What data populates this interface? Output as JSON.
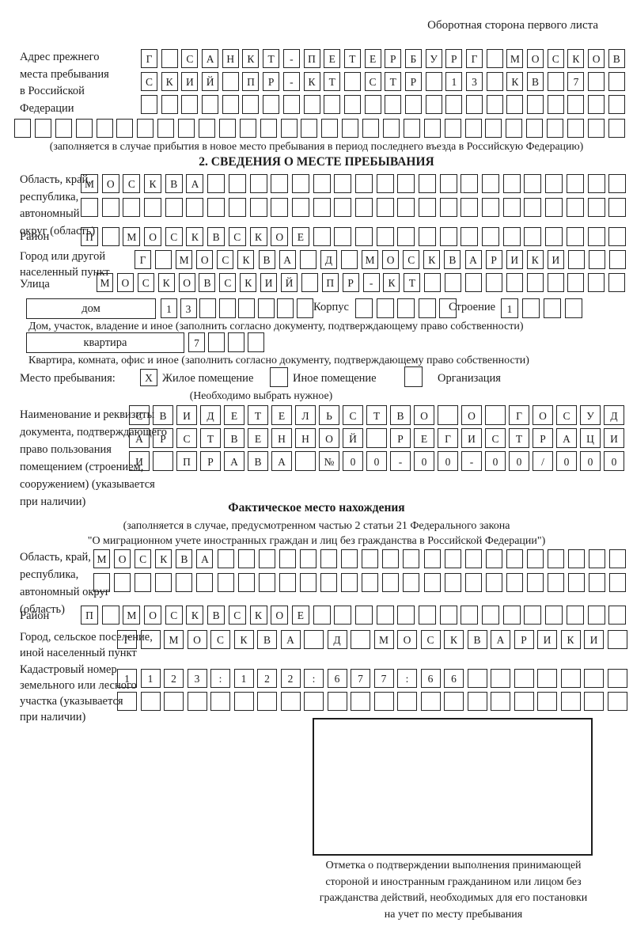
{
  "header": {
    "note": "Оборотная сторона первого листа"
  },
  "prev_address": {
    "label": "Адрес прежнего\nместа пребывания\nв Российской\nФедерации",
    "row1": "Г САНКТ-ПЕТЕРБУРГ МОСКОВ",
    "row2": "СКИЙ ПР-КТ СТР 13 КВ 7  ",
    "row3": "                        ",
    "row4": "                              ",
    "caption": "(заполняется в случае прибытия в новое место пребывания в период последнего въезда в Российскую Федерацию)"
  },
  "section2": {
    "title": "2. СВЕДЕНИЯ О МЕСТЕ ПРЕБЫВАНИЯ",
    "region": {
      "label": "Область, край,\nреспублика,\nавтономный\nокруг (область)",
      "row1": "МОСКВА                    ",
      "row2": "                          "
    },
    "district": {
      "label": "Район",
      "row": "П МОСКВСКОЕ               "
    },
    "city": {
      "label": "Город или другой\nнаселенный пункт",
      "row": "Г МОСКВА Д МОСКВАРИКИ   "
    },
    "street": {
      "label": "Улица",
      "row": "МОСКОВСКИЙ ПР-КТ          "
    },
    "house": {
      "box_label": "дом",
      "cells": "13      ",
      "korpus_label": "Корпус",
      "korpus_cells": "     ",
      "stroenie_label": "Строение",
      "stroenie_cells": "1   ",
      "caption": "Дом, участок, владение и иное (заполнить согласно документу, подтверждающему право собственности)"
    },
    "apartment": {
      "box_label": "квартира",
      "cells": "7   ",
      "caption": "Квартира, комната, офис и иное (заполнить согласно документу, подтверждающему право собственности)"
    },
    "residence": {
      "label": "Место пребывания:",
      "zhiloe_mark": "X",
      "zhiloe_label": "Жилое помещение",
      "inoe_mark": " ",
      "inoe_label": "Иное помещение",
      "org_mark": " ",
      "org_label": "Организация",
      "hint": "(Необходимо выбрать нужное)"
    },
    "document": {
      "label": "Наименование и реквизиты\nдокумента, подтверждающего\nправо пользования\nпомещением (строением,\nсооружением) (указывается\nпри наличии)",
      "row1": "СВИДЕТЕЛЬСТВО О ГОСУД",
      "row2": "АРСТВЕННОЙ РЕГИСТРАЦИ",
      "row3": "И ПРАВА №00-00-00/000"
    }
  },
  "actual_location": {
    "title": "Фактическое место нахождения",
    "caption": "(заполняется в случае, предусмотренном частью 2 статьи 21 Федерального закона\n\"О миграционном учете иностранных граждан и лиц без гражданства в Российской Федерации\")",
    "region": {
      "label": "Область, край,\nреспублика,\nавтономный округ\n(область)",
      "row1": "МОСКВА                    ",
      "row2": "                          "
    },
    "district": {
      "label": "Район",
      "row": "П МОСКВСКОЕ               "
    },
    "city": {
      "label": "Город, сельское поселение,\nиной населенный пункт",
      "row": "Г МОСКВА Д МОСКВАРИКИ "
    },
    "cadastre": {
      "label": "Кадастровый номер\nземельного или лесного\nучастка (указывается\nпри наличии)",
      "row1": "1123:122:677:66       ",
      "row2": "                      "
    },
    "stamp_caption": "Отметка о подтверждении выполнения принимающей\nстороной и иностранным гражданином или лицом без\nгражданства действий, необходимых для его постановки\nна учет по месту пребывания"
  }
}
